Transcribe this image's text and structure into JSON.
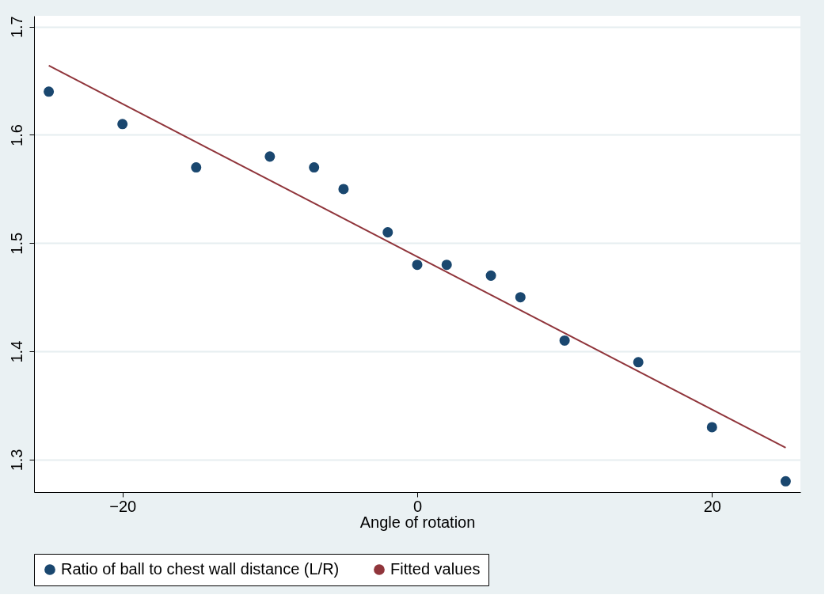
{
  "chart_data": {
    "type": "scatter",
    "xlabel": "Angle of rotation",
    "x": [
      -25,
      -20,
      -15,
      -10,
      -7,
      -5,
      -2,
      0,
      2,
      5,
      7,
      10,
      15,
      20,
      25
    ],
    "series": [
      {
        "name": "Ratio of ball to chest wall distance (L/R)",
        "color": "#1a476f",
        "marker": "circle",
        "values": [
          1.64,
          1.61,
          1.57,
          1.58,
          1.57,
          1.55,
          1.51,
          1.48,
          1.48,
          1.47,
          1.45,
          1.41,
          1.39,
          1.33,
          1.28
        ]
      },
      {
        "name": "Fitted values",
        "type": "line",
        "color": "#90353b",
        "x": [
          -25,
          25
        ],
        "values": [
          1.664,
          1.311
        ]
      }
    ],
    "xlim": [
      -26,
      26
    ],
    "xticks": [
      -20,
      0,
      20
    ],
    "ylim": [
      1.27,
      1.71
    ],
    "yticks": [
      1.3,
      1.4,
      1.5,
      1.6,
      1.7
    ],
    "grid": "y",
    "legend": "bottom"
  }
}
